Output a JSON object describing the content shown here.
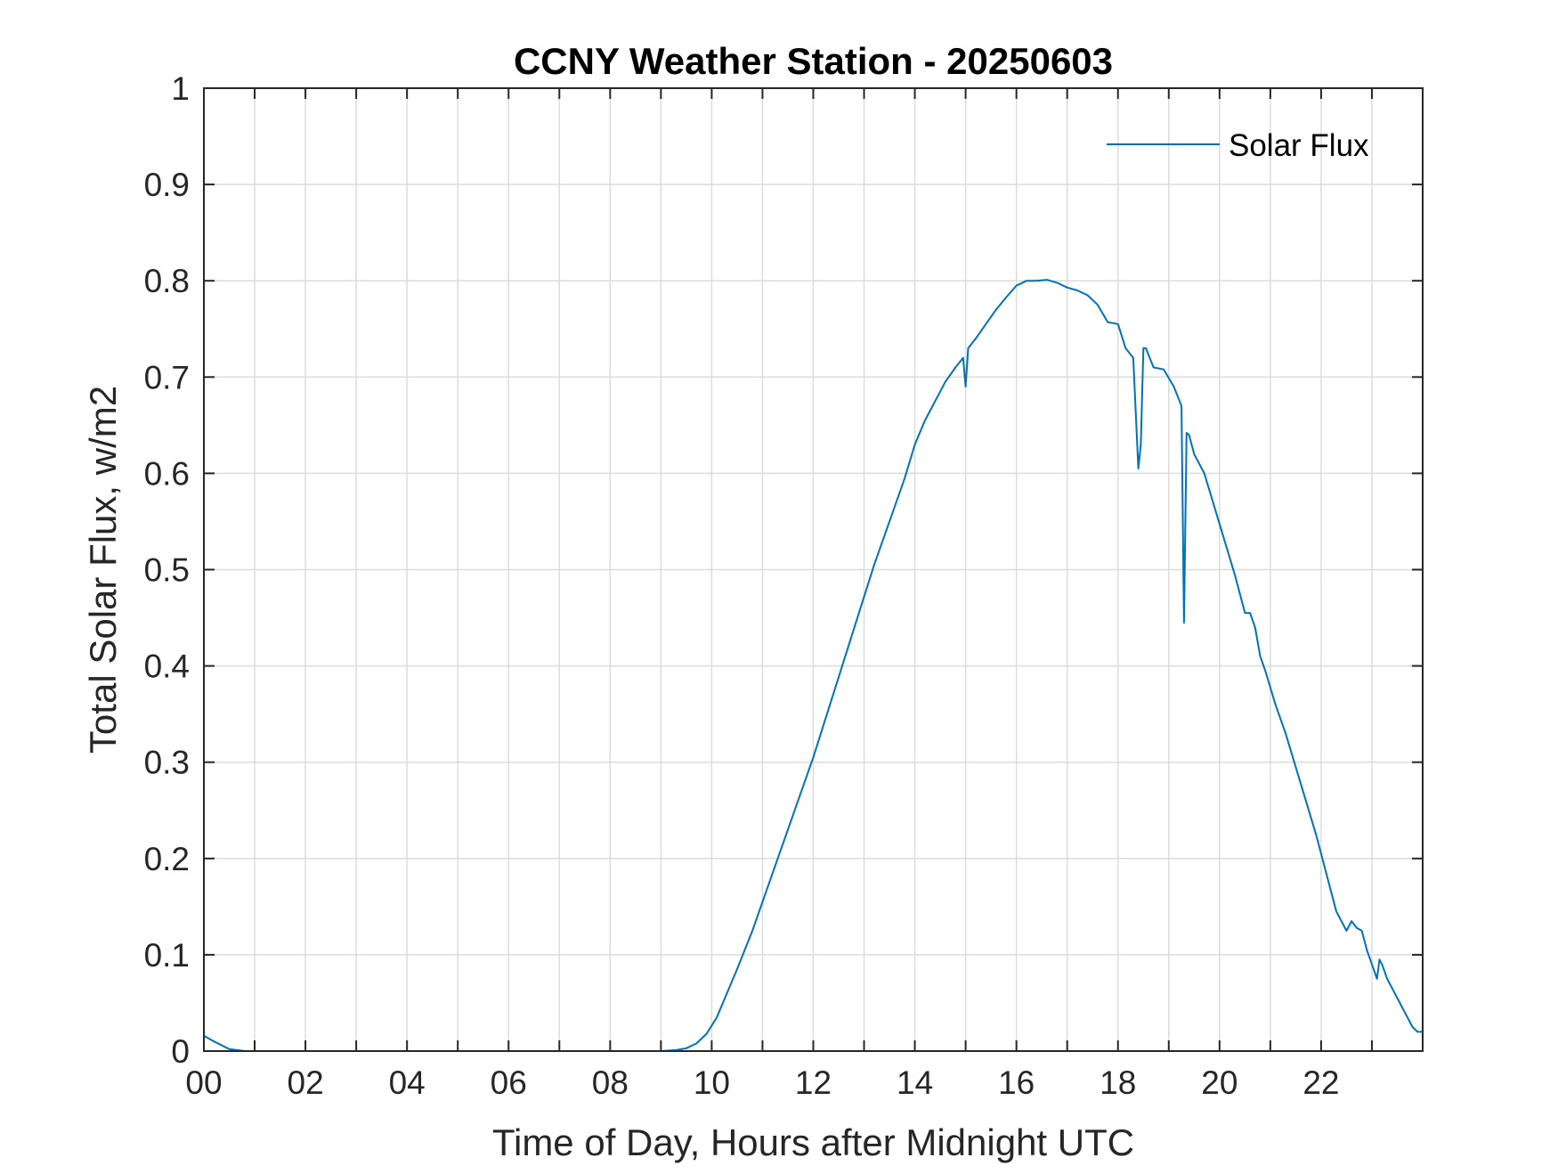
{
  "chart_data": {
    "type": "line",
    "title": "CCNY Weather Station - 20250603",
    "xlabel": "Time of Day, Hours after Midnight UTC",
    "ylabel": "Total Solar Flux, w/m2",
    "xlim": [
      0,
      24
    ],
    "ylim": [
      0,
      1
    ],
    "grid": true,
    "legend_position": "top-right",
    "x_ticks": [
      0,
      2,
      4,
      6,
      8,
      10,
      12,
      14,
      16,
      18,
      20,
      22
    ],
    "x_tick_labels": [
      "00",
      "02",
      "04",
      "06",
      "08",
      "10",
      "12",
      "14",
      "16",
      "18",
      "20",
      "22"
    ],
    "y_ticks": [
      0,
      0.1,
      0.2,
      0.3,
      0.4,
      0.5,
      0.6,
      0.7,
      0.8,
      0.9,
      1
    ],
    "y_tick_labels": [
      "0",
      "0.1",
      "0.2",
      "0.3",
      "0.4",
      "0.5",
      "0.6",
      "0.7",
      "0.8",
      "0.9",
      "1"
    ],
    "series": [
      {
        "name": "Solar Flux",
        "color": "#0072BD",
        "x": [
          0,
          0.2,
          0.5,
          0.8,
          1,
          2,
          3,
          4,
          5,
          6,
          7,
          8,
          9,
          9.3,
          9.5,
          9.7,
          9.9,
          10.1,
          10.3,
          10.5,
          10.8,
          11.1,
          11.4,
          11.7,
          12,
          12.3,
          12.6,
          12.9,
          13.2,
          13.5,
          13.8,
          14.0,
          14.2,
          14.4,
          14.6,
          14.8,
          14.95,
          15.0,
          15.05,
          15.2,
          15.4,
          15.6,
          15.8,
          16.0,
          16.2,
          16.4,
          16.6,
          16.8,
          17.0,
          17.2,
          17.4,
          17.6,
          17.8,
          18.0,
          18.15,
          18.3,
          18.4,
          18.45,
          18.5,
          18.55,
          18.7,
          18.9,
          19.1,
          19.25,
          19.3,
          19.35,
          19.4,
          19.5,
          19.7,
          19.9,
          20.1,
          20.3,
          20.5,
          20.6,
          20.7,
          20.8,
          20.9,
          21.1,
          21.3,
          21.5,
          21.7,
          21.9,
          22.1,
          22.3,
          22.5,
          22.6,
          22.7,
          22.8,
          22.9,
          23.0,
          23.1,
          23.15,
          23.2,
          23.3,
          23.4,
          23.5,
          23.6,
          23.7,
          23.8,
          23.9,
          24.0
        ],
        "y": [
          0.016,
          0.01,
          0.002,
          0,
          0,
          0,
          0,
          0,
          0,
          0,
          0,
          0,
          0,
          0.001,
          0.003,
          0.008,
          0.018,
          0.035,
          0.06,
          0.085,
          0.125,
          0.17,
          0.215,
          0.26,
          0.305,
          0.355,
          0.405,
          0.455,
          0.505,
          0.55,
          0.595,
          0.63,
          0.655,
          0.675,
          0.695,
          0.71,
          0.72,
          0.69,
          0.73,
          0.74,
          0.755,
          0.77,
          0.783,
          0.795,
          0.8,
          0.8,
          0.801,
          0.798,
          0.793,
          0.79,
          0.785,
          0.775,
          0.757,
          0.755,
          0.73,
          0.72,
          0.605,
          0.63,
          0.73,
          0.73,
          0.71,
          0.708,
          0.69,
          0.67,
          0.445,
          0.642,
          0.64,
          0.62,
          0.6,
          0.565,
          0.53,
          0.495,
          0.455,
          0.455,
          0.44,
          0.41,
          0.395,
          0.36,
          0.33,
          0.295,
          0.26,
          0.225,
          0.185,
          0.145,
          0.125,
          0.135,
          0.128,
          0.125,
          0.105,
          0.09,
          0.075,
          0.095,
          0.09,
          0.075,
          0.065,
          0.055,
          0.045,
          0.035,
          0.025,
          0.02,
          0.02
        ]
      }
    ]
  }
}
